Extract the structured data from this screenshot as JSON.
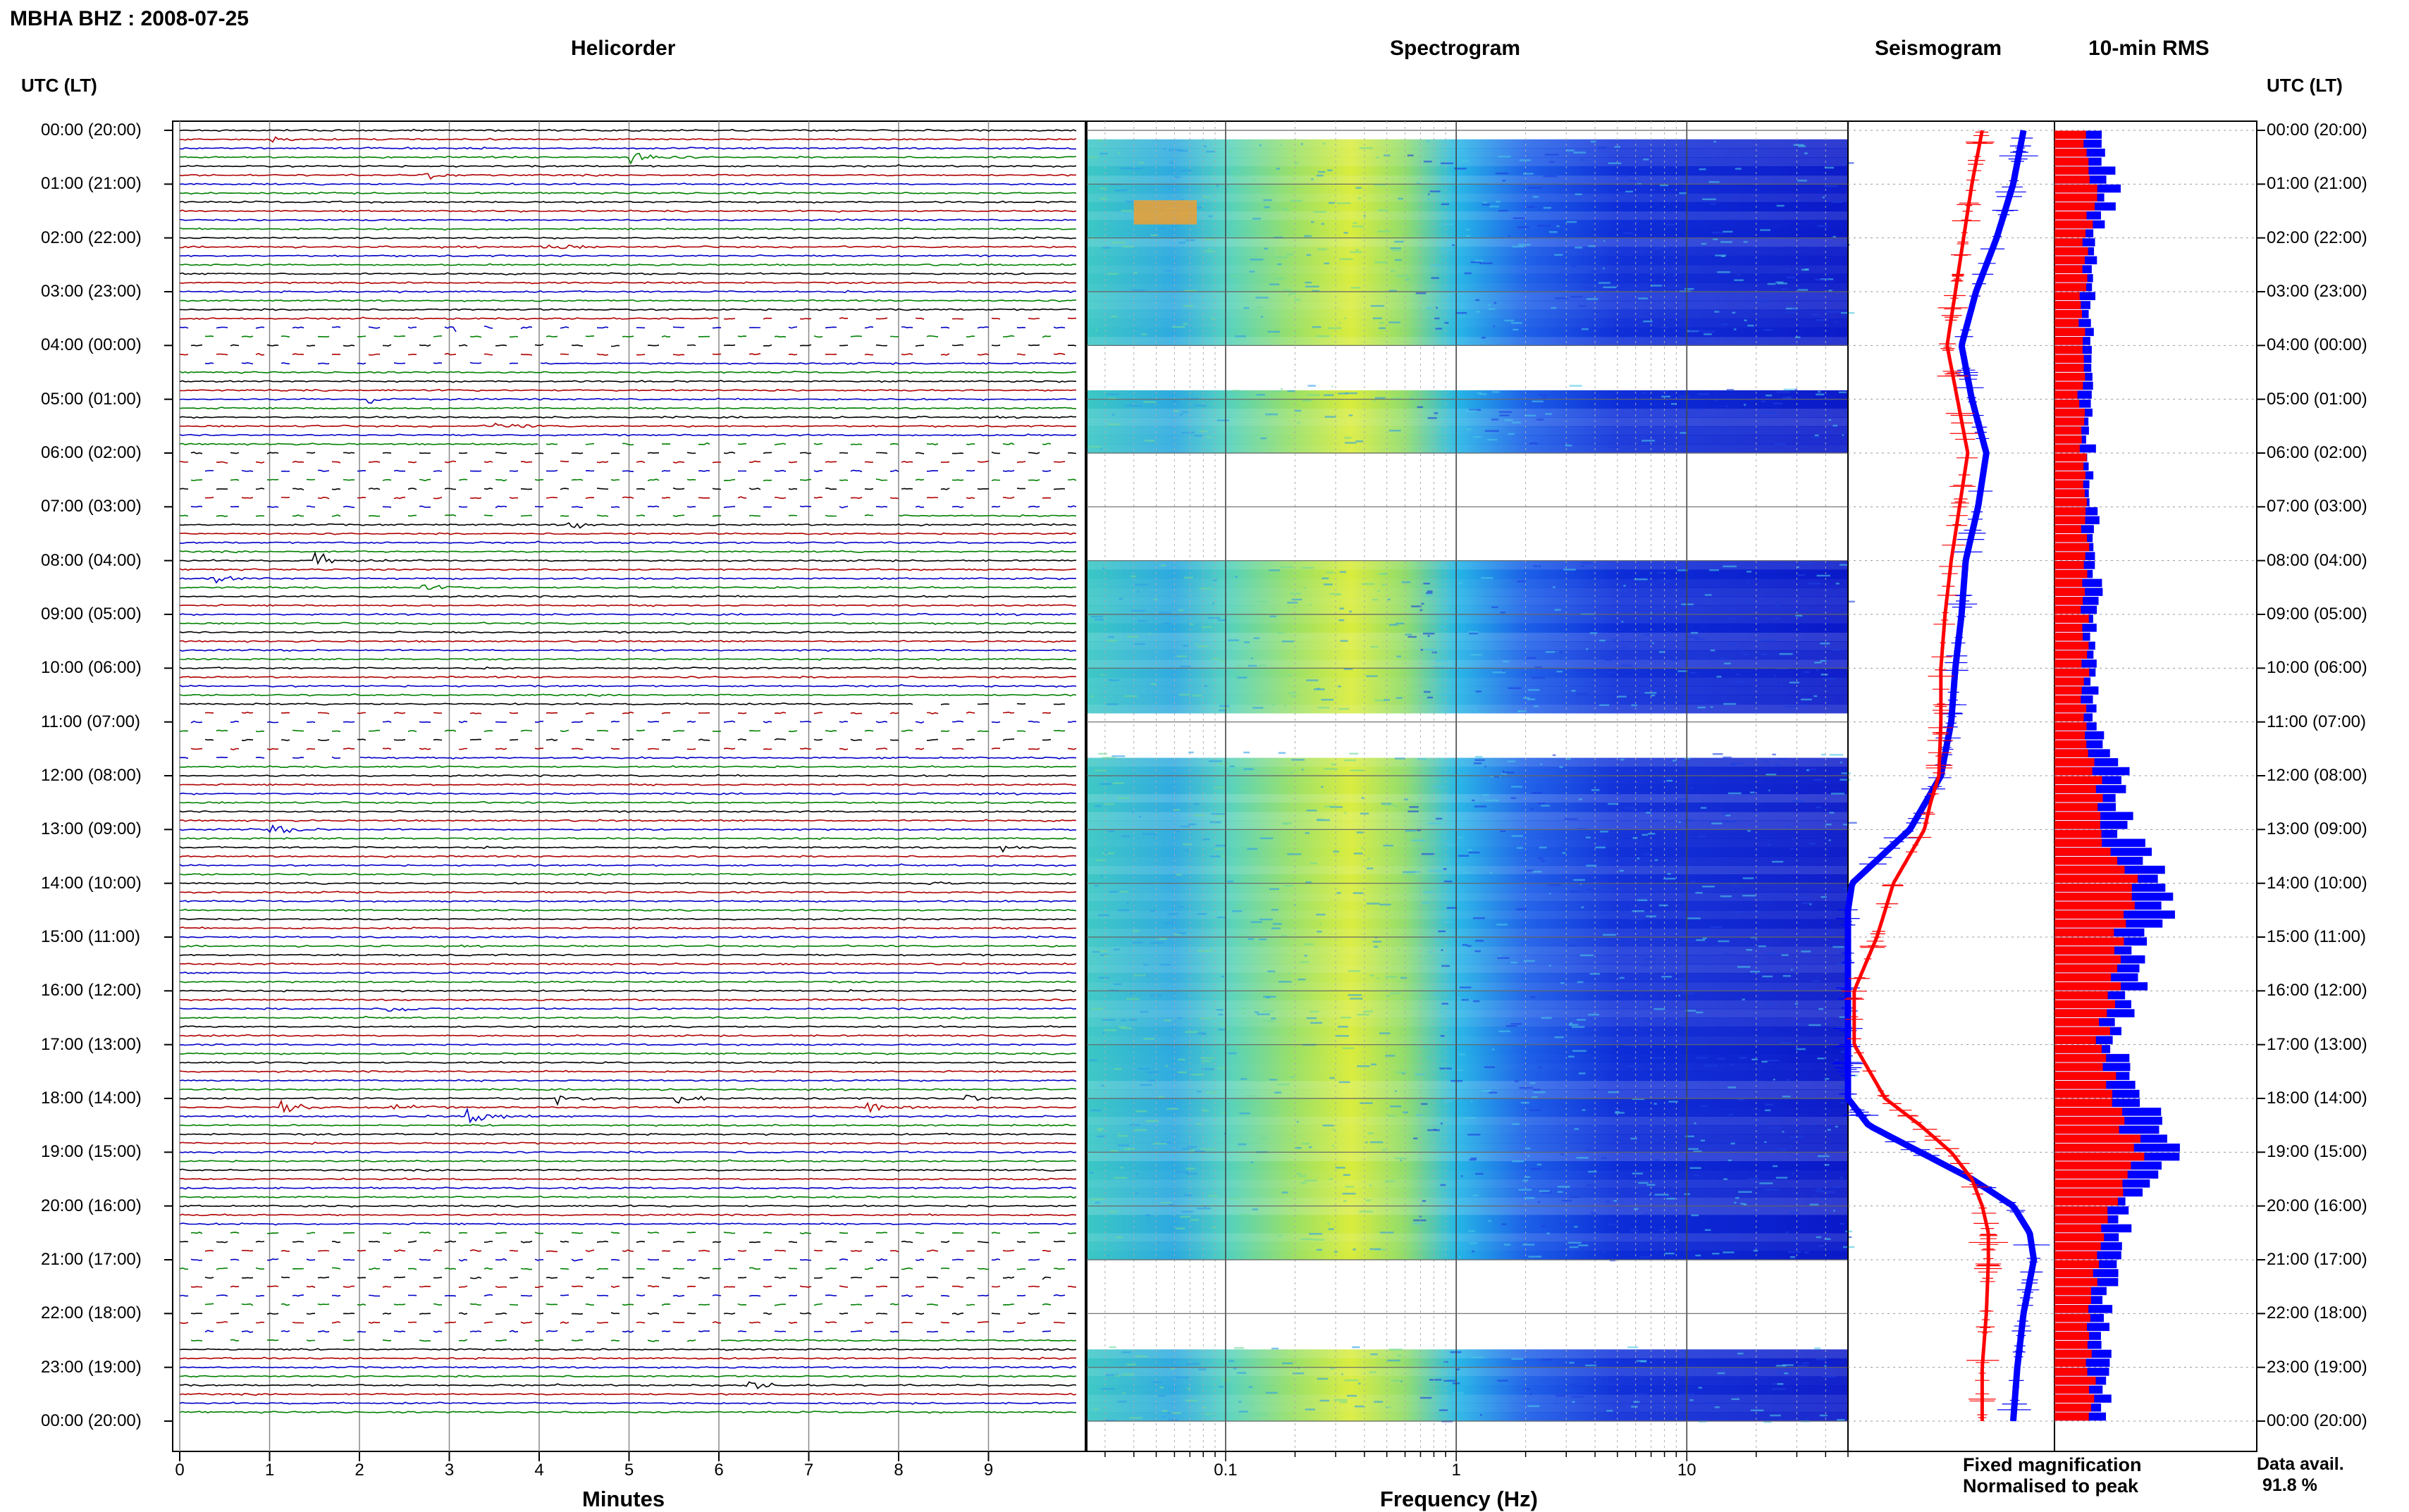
{
  "page": {
    "title": "MBHA BHZ : 2008-07-25",
    "utc_header": "UTC (LT)",
    "data_avail_label": "Data avail.",
    "data_avail_value": "91.8 %"
  },
  "panels": {
    "helicorder": "Helicorder",
    "spectrogram": "Spectrogram",
    "seismogram": "Seismogram",
    "rms": "10-min RMS"
  },
  "legend": {
    "fixed": "Fixed magnification",
    "normalised": "Normalised to peak"
  },
  "colors": {
    "trace_colors": [
      "#000000",
      "#b00000",
      "#0000c8",
      "#008000"
    ],
    "fixed": "#0000ff",
    "normalised": "#ff0000",
    "grid": "#808080"
  },
  "chart_data": [
    {
      "type": "line",
      "name": "helicorder",
      "title": "Helicorder",
      "xlabel": "Minutes",
      "xlim": [
        0,
        10
      ],
      "x_ticks": [
        "0",
        "1",
        "2",
        "3",
        "4",
        "5",
        "6",
        "7",
        "8",
        "9"
      ],
      "y_ticks": [
        "00:00 (20:00)",
        "01:00 (21:00)",
        "02:00 (22:00)",
        "03:00 (23:00)",
        "04:00 (00:00)",
        "05:00 (01:00)",
        "06:00 (02:00)",
        "07:00 (03:00)",
        "08:00 (04:00)",
        "09:00 (05:00)",
        "10:00 (06:00)",
        "11:00 (07:00)",
        "12:00 (08:00)",
        "13:00 (09:00)",
        "14:00 (10:00)",
        "15:00 (11:00)",
        "16:00 (12:00)",
        "17:00 (13:00)",
        "18:00 (14:00)",
        "19:00 (15:00)",
        "20:00 (16:00)",
        "21:00 (17:00)",
        "22:00 (18:00)",
        "23:00 (19:00)",
        "00:00 (20:00)"
      ],
      "rows": 144,
      "events": [
        {
          "hour": 0.55,
          "minute": 5.0,
          "amp": 1.0
        },
        {
          "hour": 0.15,
          "minute": 1.0,
          "amp": 0.4
        },
        {
          "hour": 0.75,
          "minute": 2.7,
          "amp": 0.5
        },
        {
          "hour": 2.15,
          "minute": 4.0,
          "amp": 0.7
        },
        {
          "hour": 3.65,
          "minute": 3.0,
          "amp": 0.4
        },
        {
          "hour": 4.95,
          "minute": 2.1,
          "amp": 0.4
        },
        {
          "hour": 5.55,
          "minute": 3.5,
          "amp": 0.5
        },
        {
          "hour": 7.35,
          "minute": 4.3,
          "amp": 0.6
        },
        {
          "hour": 8.05,
          "minute": 1.5,
          "amp": 0.9
        },
        {
          "hour": 8.25,
          "minute": 0.3,
          "amp": 0.6
        },
        {
          "hour": 8.55,
          "minute": 2.6,
          "amp": 0.5
        },
        {
          "hour": 13.05,
          "minute": 1.0,
          "amp": 0.6
        },
        {
          "hour": 13.35,
          "minute": 9.1,
          "amp": 0.4
        },
        {
          "hour": 14.05,
          "minute": 8.3,
          "amp": 0.5
        },
        {
          "hour": 16.35,
          "minute": 2.3,
          "amp": 0.5
        },
        {
          "hour": 18.15,
          "minute": 1.1,
          "amp": 0.9
        },
        {
          "hour": 18.15,
          "minute": 2.3,
          "amp": 0.6
        },
        {
          "hour": 18.25,
          "minute": 3.2,
          "amp": 1.0
        },
        {
          "hour": 17.95,
          "minute": 4.2,
          "amp": 0.7
        },
        {
          "hour": 18.05,
          "minute": 5.5,
          "amp": 0.6
        },
        {
          "hour": 18.15,
          "minute": 7.6,
          "amp": 0.9
        },
        {
          "hour": 17.95,
          "minute": 8.7,
          "amp": 0.7
        },
        {
          "hour": 20.65,
          "minute": 6.9,
          "amp": 0.5
        },
        {
          "hour": 21.35,
          "minute": 9.3,
          "amp": 0.6
        },
        {
          "hour": 23.25,
          "minute": 6.3,
          "amp": 0.6
        }
      ],
      "gaps_hours": [
        [
          3.6,
          4.4
        ],
        [
          5.9,
          7.3
        ],
        [
          10.8,
          11.7
        ],
        [
          20.5,
          22.6
        ]
      ]
    },
    {
      "type": "heatmap",
      "name": "spectrogram",
      "title": "Spectrogram",
      "xlabel": "Frequency (Hz)",
      "x_scale": "log",
      "xlim": [
        0.025,
        50
      ],
      "x_ticks": [
        0.1,
        1,
        10
      ],
      "x_tick_labels": [
        "0.1",
        "1",
        "10"
      ],
      "peak_band_hz": [
        0.2,
        0.6
      ],
      "data_gaps_hours": [
        [
          0,
          0.15
        ],
        [
          3.85,
          4.7
        ],
        [
          5.9,
          8.0
        ],
        [
          10.8,
          11.55
        ],
        [
          21.0,
          22.6
        ]
      ]
    },
    {
      "type": "line",
      "name": "seismogram",
      "title": "Seismogram",
      "series": [
        {
          "name": "Fixed magnification",
          "hours": [
            0,
            1,
            2,
            3,
            4,
            5,
            6,
            7,
            8,
            9,
            10,
            11,
            12,
            13,
            14,
            14.5,
            15,
            16,
            17,
            18,
            18.5,
            19,
            19.5,
            20,
            20.5,
            21,
            22,
            23,
            24
          ],
          "values": [
            0.85,
            0.8,
            0.72,
            0.62,
            0.55,
            0.6,
            0.67,
            0.63,
            0.57,
            0.55,
            0.52,
            0.5,
            0.45,
            0.3,
            0.02,
            0.0,
            0.0,
            0.0,
            0.0,
            0.0,
            0.1,
            0.35,
            0.6,
            0.8,
            0.88,
            0.9,
            0.85,
            0.82,
            0.8
          ]
        },
        {
          "name": "Normalised to peak",
          "hours": [
            0,
            1,
            2,
            3,
            4,
            5,
            6,
            7,
            8,
            9,
            10,
            11,
            12,
            12.5,
            13,
            14,
            15,
            16,
            17,
            18,
            18.5,
            19,
            19.5,
            20,
            20.5,
            21,
            22,
            23,
            24
          ],
          "values": [
            0.65,
            0.6,
            0.56,
            0.52,
            0.48,
            0.53,
            0.58,
            0.54,
            0.5,
            0.47,
            0.45,
            0.45,
            0.44,
            0.4,
            0.37,
            0.22,
            0.14,
            0.03,
            0.03,
            0.18,
            0.35,
            0.5,
            0.6,
            0.65,
            0.68,
            0.68,
            0.67,
            0.65,
            0.65
          ]
        }
      ]
    },
    {
      "type": "bar",
      "name": "rms",
      "title": "10-min RMS",
      "series": [
        {
          "name": "Fixed magnification",
          "values_by_hour": [
            0.22,
            0.3,
            0.2,
            0.18,
            0.18,
            0.17,
            0.18,
            0.2,
            0.22,
            0.2,
            0.19,
            0.19,
            0.35,
            0.35,
            0.6,
            0.45,
            0.4,
            0.3,
            0.45,
            0.6,
            0.35,
            0.3,
            0.25,
            0.25,
            0.24
          ]
        },
        {
          "name": "Normalised to peak",
          "values_by_hour": [
            0.15,
            0.2,
            0.15,
            0.14,
            0.14,
            0.13,
            0.14,
            0.15,
            0.16,
            0.15,
            0.15,
            0.15,
            0.22,
            0.24,
            0.4,
            0.32,
            0.28,
            0.22,
            0.32,
            0.42,
            0.25,
            0.22,
            0.18,
            0.18,
            0.17
          ]
        }
      ]
    }
  ]
}
